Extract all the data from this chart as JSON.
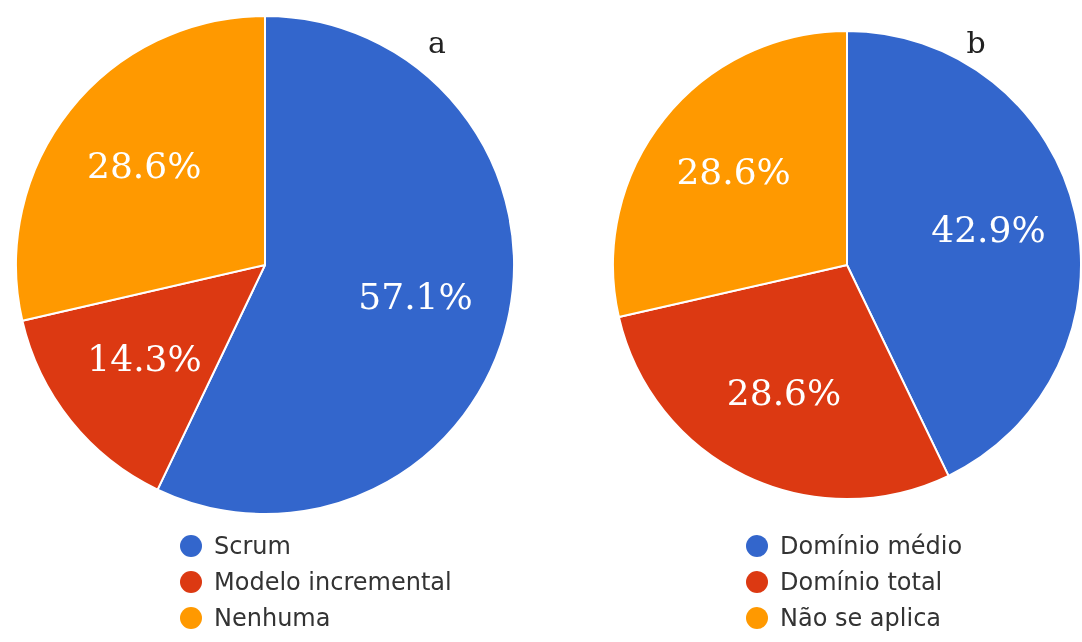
{
  "chart_data": [
    {
      "type": "pie",
      "title": "a",
      "categories": [
        "Scrum",
        "Modelo incremental",
        "Nenhuma"
      ],
      "values": [
        57.1,
        14.3,
        28.6
      ],
      "value_labels": [
        "57.1%",
        "14.3%",
        "28.6%"
      ],
      "colors": [
        "#3366cc",
        "#dc3912",
        "#ff9900"
      ],
      "legend": "bottom"
    },
    {
      "type": "pie",
      "title": "b",
      "categories": [
        "Domínio médio",
        "Domínio total",
        "Não se aplica"
      ],
      "values": [
        42.9,
        28.6,
        28.6
      ],
      "value_labels": [
        "42.9%",
        "28.6%",
        "28.6%"
      ],
      "colors": [
        "#3366cc",
        "#dc3912",
        "#ff9900"
      ],
      "legend": "bottom"
    }
  ]
}
